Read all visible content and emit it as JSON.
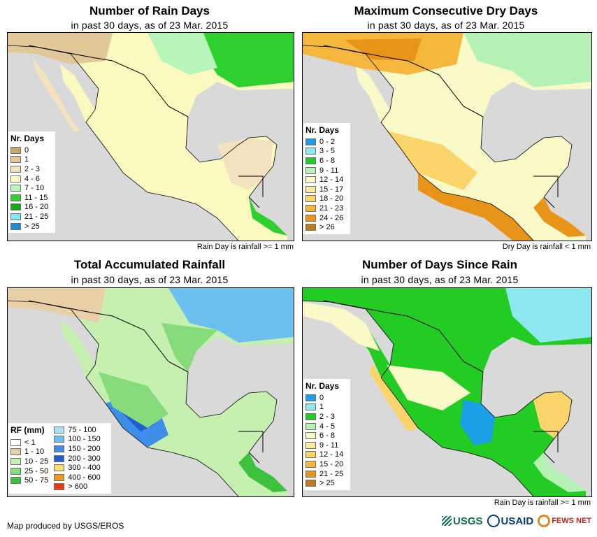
{
  "panels": [
    {
      "title": "Number of Rain Days",
      "subtitle": "in past 30 days, as of 23 Mar. 2015",
      "note": "Rain Day is rainfall >= 1 mm",
      "legend": {
        "title": "Nr. Days",
        "items": [
          {
            "label": "0",
            "color": "#c9a764"
          },
          {
            "label": "1",
            "color": "#e0c899"
          },
          {
            "label": "2 - 3",
            "color": "#f2e2c0"
          },
          {
            "label": "4 - 6",
            "color": "#fafac0"
          },
          {
            "label": "7 - 10",
            "color": "#b8f5b8"
          },
          {
            "label": "11 - 15",
            "color": "#2ed02e"
          },
          {
            "label": "16 - 20",
            "color": "#14a914"
          },
          {
            "label": "21 - 25",
            "color": "#7fe8f5"
          },
          {
            "label": "> 25",
            "color": "#1f8fd0"
          }
        ]
      }
    },
    {
      "title": "Maximum Consecutive Dry Days",
      "subtitle": "in past 30 days, as of 23 Mar. 2015",
      "note": "Dry Day is rainfall < 1 mm",
      "legend": {
        "title": "Nr. Days",
        "items": [
          {
            "label": "0 - 2",
            "color": "#1aa0e6"
          },
          {
            "label": "3 - 5",
            "color": "#8ee8f0"
          },
          {
            "label": "6 - 8",
            "color": "#22cc22"
          },
          {
            "label": "9 - 11",
            "color": "#b6f2b6"
          },
          {
            "label": "12 - 14",
            "color": "#fafac8"
          },
          {
            "label": "15 - 17",
            "color": "#fdeb9a"
          },
          {
            "label": "18 - 20",
            "color": "#fbd56a"
          },
          {
            "label": "21 - 23",
            "color": "#f5b63c"
          },
          {
            "label": "24 - 26",
            "color": "#e89418"
          },
          {
            "label": "> 26",
            "color": "#c27a18"
          }
        ]
      }
    },
    {
      "title": "Total Accumulated Rainfall",
      "subtitle": "in past 30 days, as of 23 Mar. 2015",
      "note": "",
      "legend": {
        "title": "RF (mm)",
        "col1": [
          {
            "label": "< 1",
            "color": "#ffffff"
          },
          {
            "label": "1 - 10",
            "color": "#e8cfa6"
          },
          {
            "label": "10 - 25",
            "color": "#c6f0b0"
          },
          {
            "label": "25 - 50",
            "color": "#86dc7a"
          },
          {
            "label": "50 - 75",
            "color": "#3cc23c"
          }
        ],
        "col2": [
          {
            "label": "75 - 100",
            "color": "#a8e4f8"
          },
          {
            "label": "100 - 150",
            "color": "#6cc0f0"
          },
          {
            "label": "150 - 200",
            "color": "#3c8ee8"
          },
          {
            "label": "200 - 300",
            "color": "#1e5ed0"
          },
          {
            "label": "300 - 400",
            "color": "#f8e070"
          },
          {
            "label": "400 - 600",
            "color": "#f09a18"
          },
          {
            "label": "> 600",
            "color": "#e83a14"
          }
        ]
      }
    },
    {
      "title": "Number of Days Since Rain",
      "subtitle": "in past 30 days, as of 23 Mar. 2015",
      "note": "Rain Day is rainfall >= 1 mm",
      "legend": {
        "title": "Nr. Days",
        "items": [
          {
            "label": "0",
            "color": "#1aa0e6"
          },
          {
            "label": "1",
            "color": "#8ee8f0"
          },
          {
            "label": "2 - 3",
            "color": "#22cc22"
          },
          {
            "label": "4 - 5",
            "color": "#b6f2b6"
          },
          {
            "label": "6 - 8",
            "color": "#fafac8"
          },
          {
            "label": "9 - 11",
            "color": "#fdeb9a"
          },
          {
            "label": "12 - 14",
            "color": "#fbd56a"
          },
          {
            "label": "15 - 20",
            "color": "#f5b63c"
          },
          {
            "label": "21 - 25",
            "color": "#e89418"
          },
          {
            "label": "> 25",
            "color": "#c27a18"
          }
        ]
      }
    }
  ],
  "colors": {
    "ocean": "#d9d9d9",
    "border": "#000000"
  },
  "footer": {
    "credit": "Map produced by USGS/EROS",
    "logos": {
      "usgs": "USGS",
      "usaid": "USAID",
      "fews": "FEWS NET"
    }
  }
}
